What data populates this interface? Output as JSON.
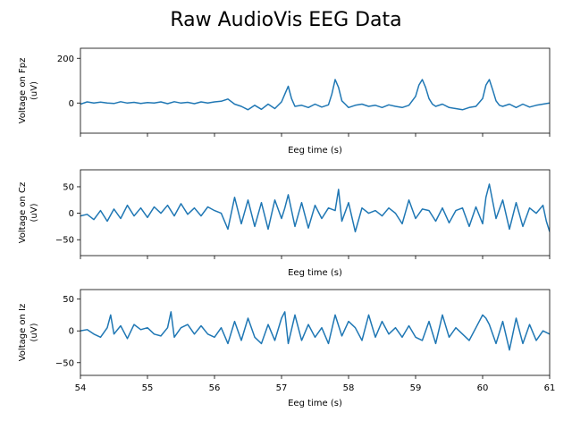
{
  "figure": {
    "title": "Raw AudioVis EEG Data"
  },
  "chart_data": [
    {
      "type": "line",
      "channel": "Fpz",
      "xlabel": "Eeg time (s)",
      "ylabel": [
        "Voltage on Fpz",
        "(uV)"
      ],
      "xlim": [
        54,
        61
      ],
      "ylim": [
        -135,
        245
      ],
      "yticks": [
        0,
        200
      ],
      "xticks": [
        54,
        55,
        56,
        57,
        58,
        59,
        60,
        61
      ],
      "show_xtick_labels": false,
      "grid": false,
      "color": "#1f77b4",
      "x": [
        54.0,
        54.1,
        54.2,
        54.3,
        54.4,
        54.5,
        54.6,
        54.7,
        54.8,
        54.9,
        55.0,
        55.1,
        55.2,
        55.3,
        55.4,
        55.5,
        55.6,
        55.7,
        55.8,
        55.9,
        56.0,
        56.1,
        56.2,
        56.3,
        56.4,
        56.5,
        56.6,
        56.7,
        56.8,
        56.9,
        57.0,
        57.05,
        57.1,
        57.15,
        57.2,
        57.3,
        57.4,
        57.5,
        57.6,
        57.7,
        57.75,
        57.8,
        57.85,
        57.9,
        57.95,
        58.0,
        58.1,
        58.2,
        58.3,
        58.4,
        58.5,
        58.6,
        58.7,
        58.8,
        58.9,
        59.0,
        59.05,
        59.1,
        59.15,
        59.2,
        59.25,
        59.3,
        59.4,
        59.5,
        59.6,
        59.7,
        59.8,
        59.9,
        60.0,
        60.05,
        60.1,
        60.15,
        60.2,
        60.25,
        60.3,
        60.4,
        60.5,
        60.6,
        60.7,
        60.8,
        60.9,
        61.0
      ],
      "y": [
        -5,
        5,
        0,
        4,
        0,
        -2,
        6,
        0,
        3,
        -2,
        2,
        0,
        5,
        -3,
        6,
        0,
        3,
        -3,
        5,
        0,
        5,
        8,
        18,
        -5,
        -15,
        -30,
        -10,
        -28,
        -5,
        -25,
        5,
        40,
        75,
        20,
        -15,
        -10,
        -20,
        -5,
        -18,
        -8,
        40,
        105,
        70,
        10,
        -5,
        -20,
        -10,
        -5,
        -15,
        -10,
        -20,
        -8,
        -15,
        -20,
        -10,
        30,
        80,
        105,
        70,
        20,
        -5,
        -15,
        -5,
        -20,
        -25,
        -30,
        -20,
        -15,
        20,
        80,
        105,
        60,
        10,
        -10,
        -15,
        -5,
        -20,
        -5,
        -18,
        -10,
        -5,
        0
      ]
    },
    {
      "type": "line",
      "channel": "Cz",
      "xlabel": "Eeg time (s)",
      "ylabel": [
        "Voltage on Cz",
        "(uV)"
      ],
      "xlim": [
        54,
        61
      ],
      "ylim": [
        -80,
        82
      ],
      "yticks": [
        -50,
        0,
        50
      ],
      "xticks": [
        54,
        55,
        56,
        57,
        58,
        59,
        60,
        61
      ],
      "show_xtick_labels": false,
      "grid": false,
      "color": "#1f77b4",
      "x": [
        54.0,
        54.1,
        54.2,
        54.3,
        54.4,
        54.5,
        54.6,
        54.7,
        54.8,
        54.9,
        55.0,
        55.1,
        55.2,
        55.3,
        55.4,
        55.5,
        55.6,
        55.7,
        55.8,
        55.9,
        56.0,
        56.1,
        56.2,
        56.3,
        56.4,
        56.5,
        56.6,
        56.7,
        56.8,
        56.9,
        57.0,
        57.05,
        57.1,
        57.2,
        57.3,
        57.4,
        57.5,
        57.6,
        57.7,
        57.8,
        57.85,
        57.9,
        58.0,
        58.1,
        58.2,
        58.3,
        58.4,
        58.5,
        58.6,
        58.7,
        58.8,
        58.9,
        59.0,
        59.1,
        59.2,
        59.3,
        59.4,
        59.5,
        59.6,
        59.7,
        59.8,
        59.9,
        60.0,
        60.05,
        60.1,
        60.2,
        60.3,
        60.4,
        60.5,
        60.6,
        60.7,
        60.8,
        60.9,
        60.95,
        61.0
      ],
      "y": [
        -5,
        -2,
        -12,
        5,
        -15,
        8,
        -10,
        15,
        -5,
        10,
        -8,
        12,
        0,
        15,
        -5,
        18,
        -2,
        10,
        -5,
        12,
        5,
        0,
        -30,
        30,
        -20,
        25,
        -25,
        20,
        -30,
        25,
        -10,
        10,
        35,
        -25,
        20,
        -28,
        15,
        -10,
        10,
        5,
        45,
        -15,
        20,
        -35,
        10,
        0,
        5,
        -5,
        10,
        0,
        -20,
        25,
        -10,
        8,
        5,
        -15,
        10,
        -18,
        5,
        10,
        -25,
        12,
        -20,
        30,
        55,
        -10,
        25,
        -30,
        20,
        -25,
        10,
        0,
        15,
        -15,
        -35
      ]
    },
    {
      "type": "line",
      "channel": "Iz",
      "xlabel": "Eeg time (s)",
      "ylabel": [
        "Voltage on Iz",
        "(uV)"
      ],
      "xlim": [
        54,
        61
      ],
      "ylim": [
        -70,
        65
      ],
      "yticks": [
        -50,
        0,
        50
      ],
      "xticks": [
        54,
        55,
        56,
        57,
        58,
        59,
        60,
        61
      ],
      "show_xtick_labels": true,
      "grid": false,
      "color": "#1f77b4",
      "x": [
        54.0,
        54.1,
        54.2,
        54.3,
        54.4,
        54.45,
        54.5,
        54.6,
        54.7,
        54.8,
        54.9,
        55.0,
        55.1,
        55.2,
        55.3,
        55.35,
        55.4,
        55.5,
        55.6,
        55.7,
        55.8,
        55.9,
        56.0,
        56.1,
        56.2,
        56.3,
        56.4,
        56.5,
        56.6,
        56.7,
        56.8,
        56.9,
        57.0,
        57.05,
        57.1,
        57.2,
        57.3,
        57.4,
        57.5,
        57.6,
        57.7,
        57.8,
        57.9,
        58.0,
        58.1,
        58.2,
        58.3,
        58.4,
        58.5,
        58.6,
        58.7,
        58.8,
        58.9,
        59.0,
        59.1,
        59.2,
        59.3,
        59.4,
        59.5,
        59.6,
        59.7,
        59.8,
        59.9,
        60.0,
        60.05,
        60.1,
        60.2,
        60.3,
        60.4,
        60.5,
        60.6,
        60.7,
        60.8,
        60.9,
        61.0
      ],
      "y": [
        0,
        2,
        -5,
        -10,
        5,
        25,
        -5,
        8,
        -12,
        10,
        2,
        5,
        -5,
        -8,
        5,
        30,
        -10,
        5,
        10,
        -5,
        8,
        -5,
        -10,
        5,
        -20,
        15,
        -15,
        20,
        -10,
        -20,
        10,
        -15,
        20,
        30,
        -20,
        25,
        -15,
        10,
        -10,
        5,
        -20,
        25,
        -8,
        15,
        5,
        -15,
        25,
        -10,
        15,
        -5,
        5,
        -10,
        8,
        -10,
        -15,
        15,
        -20,
        25,
        -10,
        5,
        -5,
        -15,
        5,
        25,
        20,
        10,
        -20,
        15,
        -30,
        20,
        -20,
        10,
        -15,
        0,
        -5
      ]
    }
  ]
}
